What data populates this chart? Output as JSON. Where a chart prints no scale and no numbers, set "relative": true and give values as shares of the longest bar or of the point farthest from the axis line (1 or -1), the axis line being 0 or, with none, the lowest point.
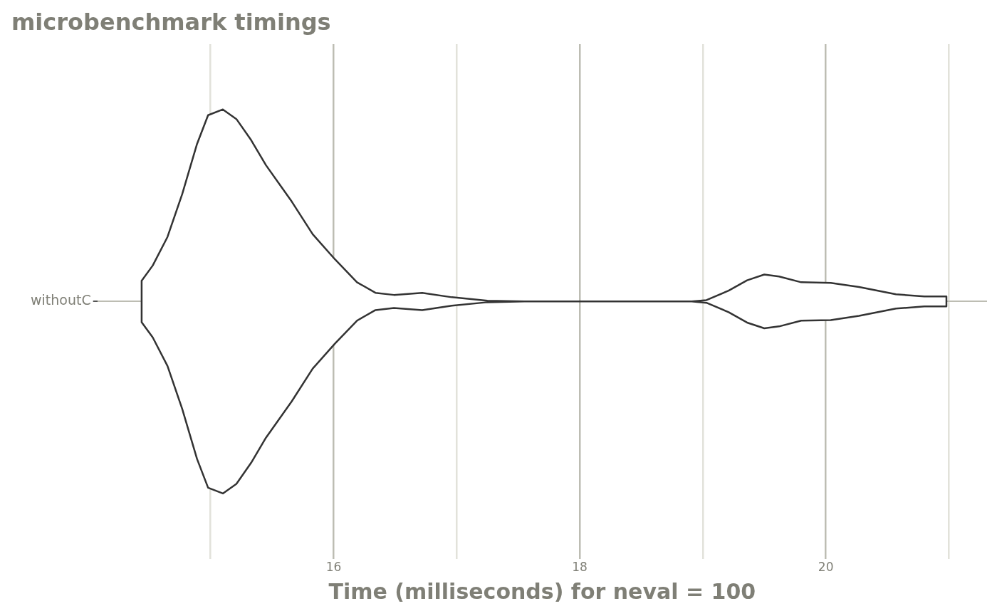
{
  "chart_data": {
    "type": "area",
    "title": "microbenchmark timings",
    "xlabel": "Time (milliseconds) for neval = 100",
    "relative": true,
    "xlim": [
      14.08,
      21.31
    ],
    "xticks": [
      {
        "value": 15,
        "label": null
      },
      16,
      {
        "value": 17,
        "label": null
      },
      18,
      {
        "value": 19,
        "label": null
      },
      20,
      {
        "value": 21,
        "label": null
      }
    ],
    "grid": true,
    "legend": false,
    "series": [
      {
        "name": "withoutC",
        "color": "#333333",
        "x": [
          14.44,
          14.53,
          14.65,
          14.77,
          14.89,
          14.98,
          15.1,
          15.21,
          15.33,
          15.45,
          15.66,
          15.83,
          16.01,
          16.19,
          16.34,
          16.49,
          16.72,
          16.96,
          17.25,
          17.55,
          18.91,
          19.03,
          19.21,
          19.36,
          19.5,
          19.62,
          19.8,
          20.04,
          20.27,
          20.57,
          20.8,
          20.98
        ],
        "values": [
          0.108,
          0.187,
          0.336,
          0.56,
          0.82,
          0.97,
          1,
          0.95,
          0.84,
          0.71,
          0.52,
          0.35,
          0.22,
          0.1,
          0.045,
          0.034,
          0.045,
          0.022,
          0.004,
          0,
          0,
          0.007,
          0.056,
          0.11,
          0.14,
          0.13,
          0.1,
          0.097,
          0.075,
          0.037,
          0.026,
          0.026
        ]
      }
    ]
  }
}
